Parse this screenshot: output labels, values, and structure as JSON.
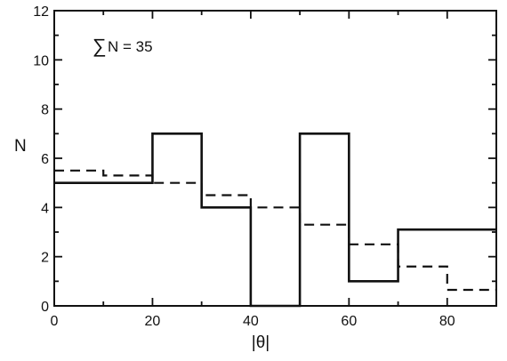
{
  "chart_data": {
    "type": "histogram",
    "xlabel": "|θ|",
    "ylabel": "N",
    "xlim": [
      0,
      90
    ],
    "ylim": [
      0,
      12
    ],
    "xticks": [
      "0",
      "20",
      "40",
      "60",
      "80"
    ],
    "yticks": [
      "0",
      "2",
      "4",
      "6",
      "8",
      "10",
      "12"
    ],
    "annotation": {
      "symbol": "∑",
      "text": "N = 35"
    },
    "grid": false,
    "legend": "none",
    "series": [
      {
        "style": "solid",
        "bins": [
          {
            "x0": 0,
            "x1": 20,
            "value": 5
          },
          {
            "x0": 20,
            "x1": 30,
            "value": 7
          },
          {
            "x0": 30,
            "x1": 40,
            "value": 4
          },
          {
            "x0": 40,
            "x1": 50,
            "value": 0
          },
          {
            "x0": 50,
            "x1": 60,
            "value": 7
          },
          {
            "x0": 60,
            "x1": 70,
            "value": 1
          },
          {
            "x0": 70,
            "x1": 90,
            "value": 3.1
          }
        ]
      },
      {
        "style": "dashed",
        "bins": [
          {
            "x0": 0,
            "x1": 10,
            "value": 5.5
          },
          {
            "x0": 10,
            "x1": 20,
            "value": 5.3
          },
          {
            "x0": 20,
            "x1": 30,
            "value": 5.0
          },
          {
            "x0": 30,
            "x1": 40,
            "value": 4.5
          },
          {
            "x0": 40,
            "x1": 50,
            "value": 4.0
          },
          {
            "x0": 50,
            "x1": 60,
            "value": 3.3
          },
          {
            "x0": 60,
            "x1": 70,
            "value": 2.5
          },
          {
            "x0": 70,
            "x1": 80,
            "value": 1.6
          },
          {
            "x0": 80,
            "x1": 90,
            "value": 0.65
          }
        ]
      }
    ]
  }
}
